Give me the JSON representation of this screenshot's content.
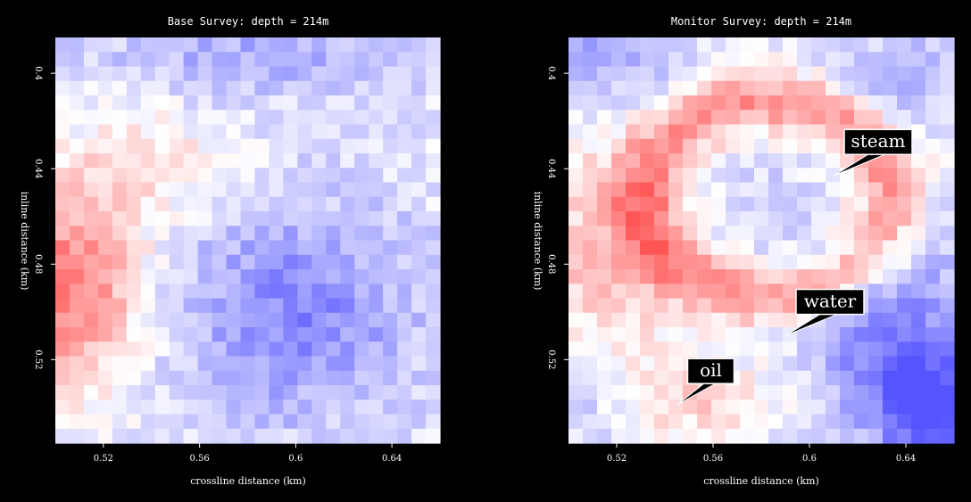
{
  "chart_data": [
    {
      "type": "heatmap",
      "title": "Base Survey: depth = 214m",
      "xlabel": "crossline distance (km)",
      "ylabel": "inline distance (km)",
      "xlim": [
        0.5,
        0.66
      ],
      "ylim": [
        0.385,
        0.555
      ],
      "x_ticks": [
        "0.52",
        "0.56",
        "0.6",
        "0.64"
      ],
      "y_ticks": [
        "0.4",
        "0.44",
        "0.48",
        "0.52"
      ],
      "colormap": {
        "negative": "#5555ff",
        "zero": "#ffffff",
        "positive": "#ff5555"
      },
      "grid": false,
      "annotations": []
    },
    {
      "type": "heatmap",
      "title": "Monitor Survey: depth = 214m",
      "xlabel": "crossline distance (km)",
      "ylabel": "inline distance (km)",
      "xlim": [
        0.5,
        0.66
      ],
      "ylim": [
        0.385,
        0.555
      ],
      "x_ticks": [
        "0.52",
        "0.56",
        "0.6",
        "0.64"
      ],
      "y_ticks": [
        "0.4",
        "0.44",
        "0.48",
        "0.52"
      ],
      "colormap": {
        "negative": "#5555ff",
        "zero": "#ffffff",
        "positive": "#ff5555"
      },
      "grid": false,
      "annotations": [
        {
          "text": "steam",
          "x": 0.61,
          "y": 0.443
        },
        {
          "text": "water",
          "x": 0.59,
          "y": 0.51
        },
        {
          "text": "oil",
          "x": 0.545,
          "y": 0.539
        }
      ]
    }
  ]
}
